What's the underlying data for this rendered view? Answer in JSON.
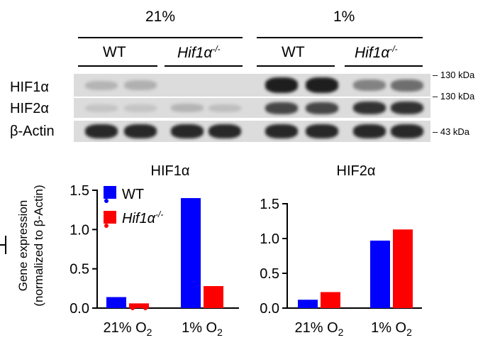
{
  "header": {
    "conditions": [
      {
        "label": "21%"
      },
      {
        "label": "1%"
      }
    ],
    "genotypes": [
      {
        "base": "WT",
        "sup": ""
      },
      {
        "base": "Hif1α",
        "sup": "-/-"
      },
      {
        "base": "WT",
        "sup": ""
      },
      {
        "base": "Hif1α",
        "sup": "-/-"
      }
    ]
  },
  "blot": {
    "rows": [
      {
        "label": "HIF1α",
        "marker": "130 kDa",
        "intensity": [
          0.2,
          0.22,
          0.0,
          0.0,
          0.95,
          0.95,
          0.45,
          0.55
        ]
      },
      {
        "label": "HIF2α",
        "marker": "130 kDa",
        "intensity": [
          0.12,
          0.12,
          0.2,
          0.15,
          0.75,
          0.75,
          0.85,
          0.85
        ]
      },
      {
        "label": "β-Actin",
        "marker": "43 kDa",
        "intensity": [
          0.9,
          0.9,
          0.9,
          0.9,
          0.9,
          0.9,
          0.9,
          0.9
        ]
      }
    ]
  },
  "y_axis_label": {
    "line1": "Gene expression",
    "line2": "(normalized to β-Actin)"
  },
  "legend": {
    "items": [
      {
        "base": "WT",
        "sup": "",
        "color": "#0000ff"
      },
      {
        "base": "Hif1α",
        "sup": "-/-",
        "color": "#ff0000"
      }
    ]
  },
  "chart_data": [
    {
      "type": "bar",
      "title": "HIF1α",
      "categories": [
        {
          "main": "21% O",
          "sub": "2"
        },
        {
          "main": "1% O",
          "sub": "2"
        }
      ],
      "series": [
        {
          "name": "WT",
          "color": "#0000ff",
          "values": [
            0.14,
            1.4
          ]
        },
        {
          "name": "Hif1α-/-",
          "color": "#ff0000",
          "values": [
            0.06,
            0.28
          ]
        }
      ],
      "ylim": [
        0,
        1.5
      ],
      "yticks": [
        "0.0",
        "0.5",
        "1.0",
        "1.5"
      ],
      "ytick_values": [
        0,
        0.5,
        1.0,
        1.5
      ],
      "grid": false
    },
    {
      "type": "bar",
      "title": "HIF2α",
      "categories": [
        {
          "main": "21% O",
          "sub": "2"
        },
        {
          "main": "1% O",
          "sub": "2"
        }
      ],
      "series": [
        {
          "name": "WT",
          "color": "#0000ff",
          "values": [
            0.12,
            0.97
          ]
        },
        {
          "name": "Hif1α-/-",
          "color": "#ff0000",
          "values": [
            0.23,
            1.13
          ]
        }
      ],
      "ylim": [
        0,
        1.5
      ],
      "yticks": [
        "0.0",
        "0.5",
        "1.0",
        "1.5"
      ],
      "ytick_values": [
        0,
        0.5,
        1.0,
        1.5
      ],
      "grid": false
    }
  ]
}
